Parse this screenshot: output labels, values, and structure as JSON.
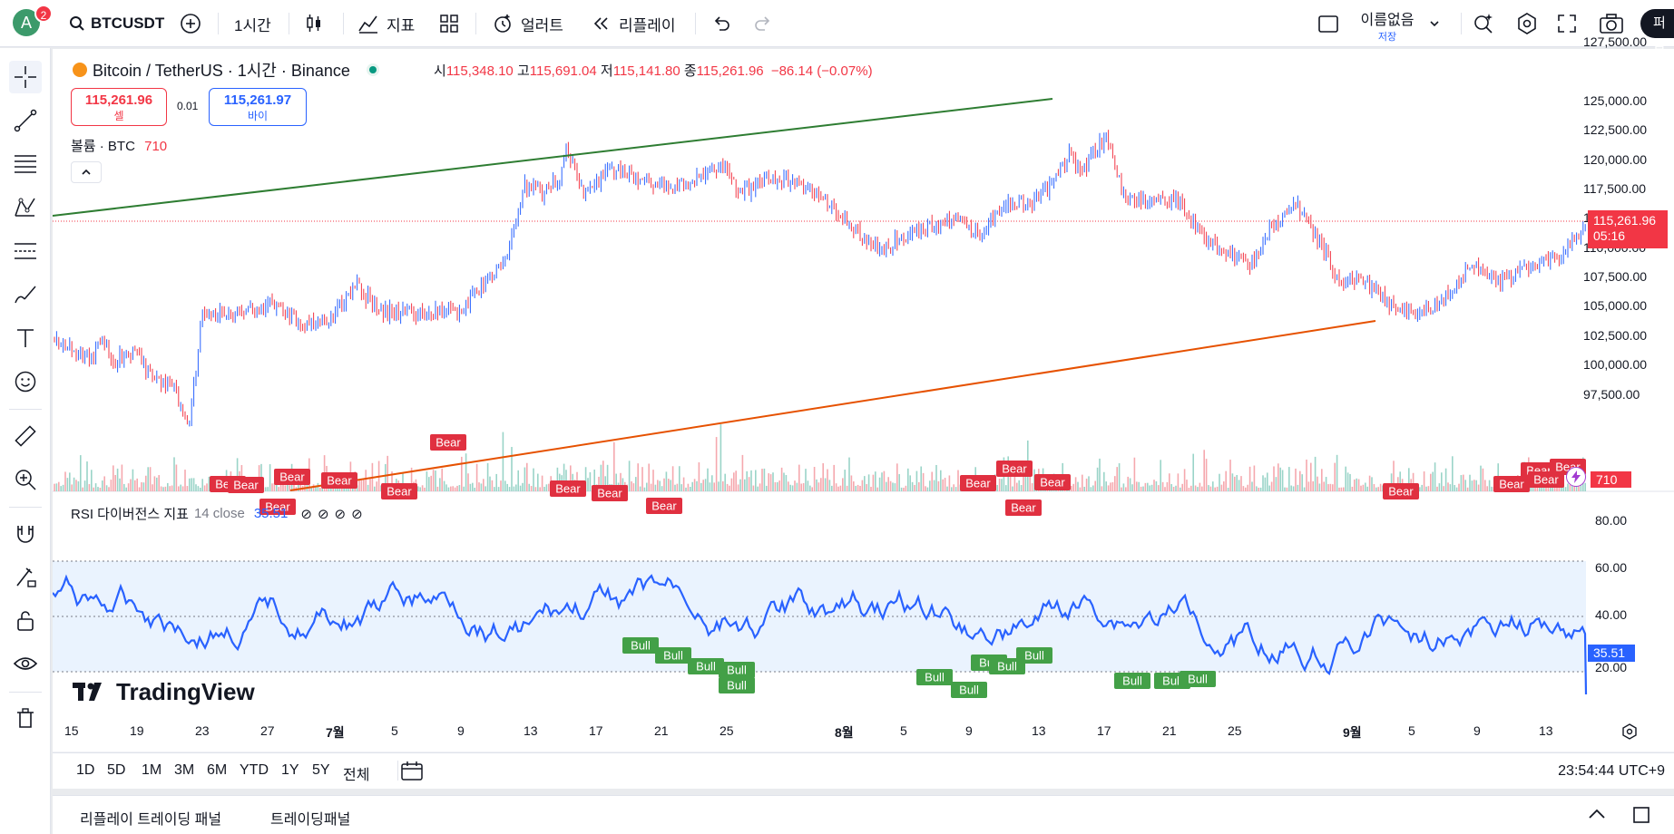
{
  "header": {
    "avatar_letter": "A",
    "notification_count": "2",
    "symbol": "BTCUSDT",
    "interval": "1시간",
    "indicators_label": "지표",
    "alert_label": "얼러트",
    "replay_label": "리플레이",
    "layout_name": "이름없음",
    "save_label": "저장",
    "publish_label": "퍼블"
  },
  "legend": {
    "title": "Bitcoin / TetherUS · 1시간 · Binance",
    "open_label": "시",
    "open": "115,348.10",
    "high_label": "고",
    "high": "115,691.04",
    "low_label": "저",
    "low": "115,141.80",
    "close_label": "종",
    "close": "115,261.96",
    "change": "−86.14 (−0.07%)",
    "sell_price": "115,261.96",
    "sell_label": "셀",
    "spread": "0.01",
    "buy_price": "115,261.97",
    "buy_label": "바이",
    "volume_label": "볼륨 · BTC",
    "volume_value": "710"
  },
  "rsi_legend": {
    "name": "RSI 다이버전스 지표",
    "params": "14 close",
    "value": "35.51"
  },
  "price_axis": [
    "127,500.00",
    "125,000.00",
    "122,500.00",
    "120,000.00",
    "117,500.00",
    "112,500.00",
    "110,000.00",
    "107,500.00",
    "105,000.00",
    "102,500.00",
    "100,000.00",
    "97,500.00"
  ],
  "rsi_axis": [
    "80.00",
    "60.00",
    "40.00",
    "20.00"
  ],
  "current_price_tag": "115,261.96",
  "countdown": "05:16",
  "volume_tag": "710",
  "rsi_tag": "35.51",
  "time_axis": [
    {
      "label": "15",
      "x": 79
    },
    {
      "label": "19",
      "x": 151
    },
    {
      "label": "23",
      "x": 223
    },
    {
      "label": "27",
      "x": 295
    },
    {
      "label": "7월",
      "x": 367
    },
    {
      "label": "5",
      "x": 439
    },
    {
      "label": "9",
      "x": 512
    },
    {
      "label": "13",
      "x": 585
    },
    {
      "label": "17",
      "x": 657
    },
    {
      "label": "21",
      "x": 729
    },
    {
      "label": "25",
      "x": 801
    },
    {
      "label": "8월",
      "x": 928
    },
    {
      "label": "5",
      "x": 1000
    },
    {
      "label": "9",
      "x": 1072
    },
    {
      "label": "13",
      "x": 1145
    },
    {
      "label": "17",
      "x": 1217
    },
    {
      "label": "21",
      "x": 1289
    },
    {
      "label": "25",
      "x": 1361
    },
    {
      "label": "9월",
      "x": 1488
    },
    {
      "label": "5",
      "x": 1560
    },
    {
      "label": "9",
      "x": 1632
    },
    {
      "label": "13",
      "x": 1704
    }
  ],
  "range_buttons": [
    "1D",
    "5D",
    "1M",
    "3M",
    "6M",
    "YTD",
    "1Y",
    "5Y",
    "전체"
  ],
  "clock": "23:54:44 UTC+9",
  "bottom_tabs": [
    "리플레이 트레이딩 패널",
    "트레이딩패널"
  ],
  "brand": "TradingView",
  "signal_bear": "Bear",
  "signal_bull": "Bull",
  "colors": {
    "up": "#089981",
    "down": "#f23645",
    "rsi": "#2962ff",
    "trend_up": "#2e7d32",
    "trend_low": "#e65100"
  }
}
